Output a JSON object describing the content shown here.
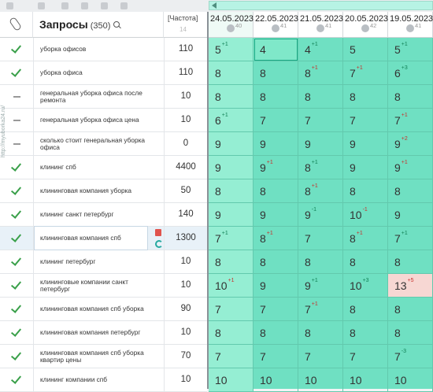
{
  "header": {
    "title": "Запросы",
    "count": "(350)",
    "freq_title": "[Частота]",
    "freq_sub": "14"
  },
  "side_text": "http://myuborka24.ru/",
  "dates": [
    {
      "date": "24.05.2023",
      "count": "40"
    },
    {
      "date": "22.05.2023",
      "count": "41"
    },
    {
      "date": "21.05.2023",
      "count": "41"
    },
    {
      "date": "20.05.2023",
      "count": "42"
    },
    {
      "date": "19.05.2023",
      "count": "41"
    }
  ],
  "rows": [
    {
      "status": "check",
      "keyword": "уборка офисов",
      "freq": "110",
      "pos": [
        {
          "v": "5",
          "d": "+1",
          "t": "up"
        },
        {
          "v": "4",
          "d": "",
          "t": ""
        },
        {
          "v": "4",
          "d": "+1",
          "t": "up"
        },
        {
          "v": "5",
          "d": "",
          "t": ""
        },
        {
          "v": "5",
          "d": "+1",
          "t": "up"
        }
      ]
    },
    {
      "status": "check",
      "keyword": "уборка офиса",
      "freq": "110",
      "pos": [
        {
          "v": "8",
          "d": "",
          "t": ""
        },
        {
          "v": "8",
          "d": "",
          "t": ""
        },
        {
          "v": "8",
          "d": "+1",
          "t": "down"
        },
        {
          "v": "7",
          "d": "+1",
          "t": "down"
        },
        {
          "v": "6",
          "d": "+3",
          "t": "up"
        }
      ]
    },
    {
      "status": "dash",
      "keyword": "генеральная уборка офиса после ремонта",
      "freq": "10",
      "pos": [
        {
          "v": "8",
          "d": "",
          "t": ""
        },
        {
          "v": "8",
          "d": "",
          "t": ""
        },
        {
          "v": "8",
          "d": "",
          "t": ""
        },
        {
          "v": "8",
          "d": "",
          "t": ""
        },
        {
          "v": "8",
          "d": "",
          "t": ""
        }
      ]
    },
    {
      "status": "dash",
      "keyword": "генеральная уборка офиса цена",
      "freq": "10",
      "pos": [
        {
          "v": "6",
          "d": "+1",
          "t": "up"
        },
        {
          "v": "7",
          "d": "",
          "t": ""
        },
        {
          "v": "7",
          "d": "",
          "t": ""
        },
        {
          "v": "7",
          "d": "",
          "t": ""
        },
        {
          "v": "7",
          "d": "+1",
          "t": "down"
        }
      ]
    },
    {
      "status": "dash",
      "keyword": "сколько стоит генеральная уборка офиса",
      "freq": "0",
      "pos": [
        {
          "v": "9",
          "d": "",
          "t": ""
        },
        {
          "v": "9",
          "d": "",
          "t": ""
        },
        {
          "v": "9",
          "d": "",
          "t": ""
        },
        {
          "v": "9",
          "d": "",
          "t": ""
        },
        {
          "v": "9",
          "d": "+2",
          "t": "down"
        }
      ]
    },
    {
      "status": "check",
      "keyword": "клининг спб",
      "freq": "4400",
      "pos": [
        {
          "v": "9",
          "d": "",
          "t": ""
        },
        {
          "v": "9",
          "d": "+1",
          "t": "down"
        },
        {
          "v": "8",
          "d": "+1",
          "t": "up"
        },
        {
          "v": "9",
          "d": "",
          "t": ""
        },
        {
          "v": "9",
          "d": "+1",
          "t": "down"
        }
      ]
    },
    {
      "status": "check",
      "keyword": "клининговая компания уборка",
      "freq": "50",
      "pos": [
        {
          "v": "8",
          "d": "",
          "t": ""
        },
        {
          "v": "8",
          "d": "",
          "t": ""
        },
        {
          "v": "8",
          "d": "+1",
          "t": "down"
        },
        {
          "v": "8",
          "d": "",
          "t": ""
        },
        {
          "v": "8",
          "d": "",
          "t": ""
        }
      ]
    },
    {
      "status": "check",
      "keyword": "клининг санкт петербург",
      "freq": "140",
      "pos": [
        {
          "v": "9",
          "d": "",
          "t": ""
        },
        {
          "v": "9",
          "d": "",
          "t": ""
        },
        {
          "v": "9",
          "d": "-1",
          "t": "up"
        },
        {
          "v": "10",
          "d": "-1",
          "t": "down"
        },
        {
          "v": "9",
          "d": "",
          "t": ""
        }
      ]
    },
    {
      "status": "check",
      "keyword": "клининговая компания спб",
      "freq": "1300",
      "pos": [
        {
          "v": "7",
          "d": "+1",
          "t": "up"
        },
        {
          "v": "8",
          "d": "+1",
          "t": "down"
        },
        {
          "v": "7",
          "d": "",
          "t": ""
        },
        {
          "v": "8",
          "d": "+1",
          "t": "down"
        },
        {
          "v": "7",
          "d": "+1",
          "t": "up"
        }
      ]
    },
    {
      "status": "check",
      "keyword": "клининг петербург",
      "freq": "10",
      "pos": [
        {
          "v": "8",
          "d": "",
          "t": ""
        },
        {
          "v": "8",
          "d": "",
          "t": ""
        },
        {
          "v": "8",
          "d": "",
          "t": ""
        },
        {
          "v": "8",
          "d": "",
          "t": ""
        },
        {
          "v": "8",
          "d": "",
          "t": ""
        }
      ]
    },
    {
      "status": "check",
      "keyword": "клининговые компании санкт петербург",
      "freq": "10",
      "pos": [
        {
          "v": "10",
          "d": "+1",
          "t": "down"
        },
        {
          "v": "9",
          "d": "",
          "t": ""
        },
        {
          "v": "9",
          "d": "+1",
          "t": "up"
        },
        {
          "v": "10",
          "d": "+3",
          "t": "up"
        },
        {
          "v": "13",
          "d": "+5",
          "t": "down"
        }
      ]
    },
    {
      "status": "check",
      "keyword": "клининговая компания спб уборка",
      "freq": "90",
      "pos": [
        {
          "v": "7",
          "d": "",
          "t": ""
        },
        {
          "v": "7",
          "d": "",
          "t": ""
        },
        {
          "v": "7",
          "d": "+1",
          "t": "down"
        },
        {
          "v": "8",
          "d": "",
          "t": ""
        },
        {
          "v": "8",
          "d": "",
          "t": ""
        }
      ]
    },
    {
      "status": "check",
      "keyword": "клининговая компания петербург",
      "freq": "10",
      "pos": [
        {
          "v": "8",
          "d": "",
          "t": ""
        },
        {
          "v": "8",
          "d": "",
          "t": ""
        },
        {
          "v": "8",
          "d": "",
          "t": ""
        },
        {
          "v": "8",
          "d": "",
          "t": ""
        },
        {
          "v": "8",
          "d": "",
          "t": ""
        }
      ]
    },
    {
      "status": "check",
      "keyword": "клининговая компания спб уборка квартир цены",
      "freq": "70",
      "pos": [
        {
          "v": "7",
          "d": "",
          "t": ""
        },
        {
          "v": "7",
          "d": "",
          "t": ""
        },
        {
          "v": "7",
          "d": "",
          "t": ""
        },
        {
          "v": "7",
          "d": "",
          "t": ""
        },
        {
          "v": "7",
          "d": "-3",
          "t": "up"
        }
      ]
    },
    {
      "status": "check",
      "keyword": "клининг компании спб",
      "freq": "10",
      "pos": [
        {
          "v": "10",
          "d": "",
          "t": ""
        },
        {
          "v": "10",
          "d": "",
          "t": ""
        },
        {
          "v": "10",
          "d": "",
          "t": ""
        },
        {
          "v": "10",
          "d": "",
          "t": ""
        },
        {
          "v": "10",
          "d": "",
          "t": ""
        }
      ]
    }
  ]
}
